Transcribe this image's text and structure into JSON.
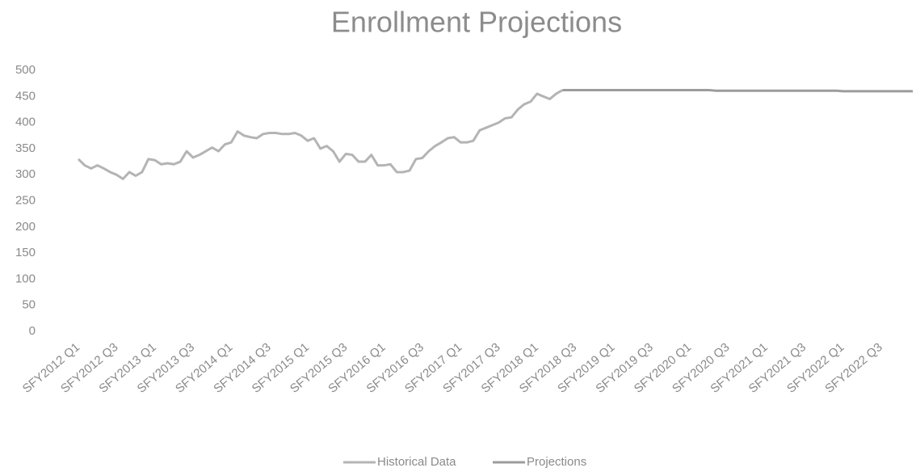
{
  "chart_data": {
    "type": "line",
    "title": "Enrollment Projections",
    "categories": [
      "SFY2012 Q1",
      null,
      null,
      null,
      null,
      null,
      "SFY2012 Q3",
      null,
      null,
      null,
      null,
      null,
      "SFY2013 Q1",
      null,
      null,
      null,
      null,
      null,
      "SFY2013 Q3",
      null,
      null,
      null,
      null,
      null,
      "SFY2014 Q1",
      null,
      null,
      null,
      null,
      null,
      "SFY2014 Q3",
      null,
      null,
      null,
      null,
      null,
      "SFY2015 Q1",
      null,
      null,
      null,
      null,
      null,
      "SFY2015 Q3",
      null,
      null,
      null,
      null,
      null,
      "SFY2016 Q1",
      null,
      null,
      null,
      null,
      null,
      "SFY2016 Q3",
      null,
      null,
      null,
      null,
      null,
      "SFY2017 Q1",
      null,
      null,
      null,
      null,
      null,
      "SFY2017 Q3",
      null,
      null,
      null,
      null,
      null,
      "SFY2018 Q1",
      null,
      null,
      null,
      null,
      null,
      "SFY2018 Q3",
      null,
      null,
      null,
      null,
      null,
      "SFY2019 Q1",
      null,
      null,
      null,
      null,
      null,
      "SFY2019 Q3",
      null,
      null,
      null,
      null,
      null,
      "SFY2020 Q1",
      null,
      null,
      null,
      null,
      null,
      "SFY2020 Q3",
      null,
      null,
      null,
      null,
      null,
      "SFY2021 Q1",
      null,
      null,
      null,
      null,
      null,
      "SFY2021 Q3",
      null,
      null,
      null,
      null,
      null,
      "SFY2022 Q1",
      null,
      null,
      null,
      null,
      null,
      "SFY2022 Q3",
      null,
      null,
      null,
      null,
      null
    ],
    "series": [
      {
        "name": "Historical Data",
        "color": "#b4b4b4",
        "values": [
          330,
          318,
          312,
          318,
          312,
          305,
          300,
          292,
          305,
          298,
          305,
          330,
          328,
          320,
          322,
          320,
          325,
          345,
          333,
          338,
          345,
          352,
          345,
          358,
          362,
          383,
          375,
          372,
          370,
          378,
          380,
          380,
          378,
          378,
          380,
          375,
          365,
          370,
          350,
          355,
          345,
          325,
          340,
          338,
          325,
          325,
          338,
          318,
          318,
          320,
          305,
          305,
          308,
          330,
          332,
          345,
          355,
          362,
          370,
          372,
          362,
          362,
          365,
          385,
          390,
          395,
          400,
          408,
          410,
          425,
          435,
          440,
          455,
          450,
          445,
          455,
          462,
          null,
          null,
          null,
          null,
          null,
          null,
          null,
          null,
          null,
          null,
          null,
          null,
          null,
          null,
          null,
          null,
          null,
          null,
          null,
          null,
          null,
          null,
          null,
          null,
          null,
          null,
          null,
          null,
          null,
          null,
          null,
          null,
          null,
          null,
          null,
          null,
          null,
          null,
          null,
          null,
          null,
          null,
          null,
          null,
          null,
          null,
          null,
          null,
          null,
          null,
          null,
          null,
          null,
          null,
          null
        ]
      },
      {
        "name": "Projections",
        "color": "#9c9c9c",
        "values": [
          null,
          null,
          null,
          null,
          null,
          null,
          null,
          null,
          null,
          null,
          null,
          null,
          null,
          null,
          null,
          null,
          null,
          null,
          null,
          null,
          null,
          null,
          null,
          null,
          null,
          null,
          null,
          null,
          null,
          null,
          null,
          null,
          null,
          null,
          null,
          null,
          null,
          null,
          null,
          null,
          null,
          null,
          null,
          null,
          null,
          null,
          null,
          null,
          null,
          null,
          null,
          null,
          null,
          null,
          null,
          null,
          null,
          null,
          null,
          null,
          null,
          null,
          null,
          null,
          null,
          null,
          null,
          null,
          null,
          null,
          null,
          null,
          null,
          null,
          null,
          null,
          462,
          462,
          462,
          462,
          462,
          462,
          462,
          462,
          462,
          462,
          462,
          462,
          462,
          462,
          462,
          462,
          462,
          462,
          462,
          462,
          462,
          462,
          462,
          462,
          461,
          461,
          461,
          461,
          461,
          461,
          461,
          461,
          461,
          461,
          461,
          461,
          461,
          461,
          461,
          461,
          461,
          461,
          461,
          461,
          460,
          460,
          460,
          460,
          460,
          460,
          460,
          460,
          460,
          460,
          460,
          460
        ]
      }
    ],
    "ylim": [
      0,
      500
    ],
    "yticks": [
      0,
      50,
      100,
      150,
      200,
      250,
      300,
      350,
      400,
      450,
      500
    ],
    "grid": false,
    "legend": "bottom"
  }
}
